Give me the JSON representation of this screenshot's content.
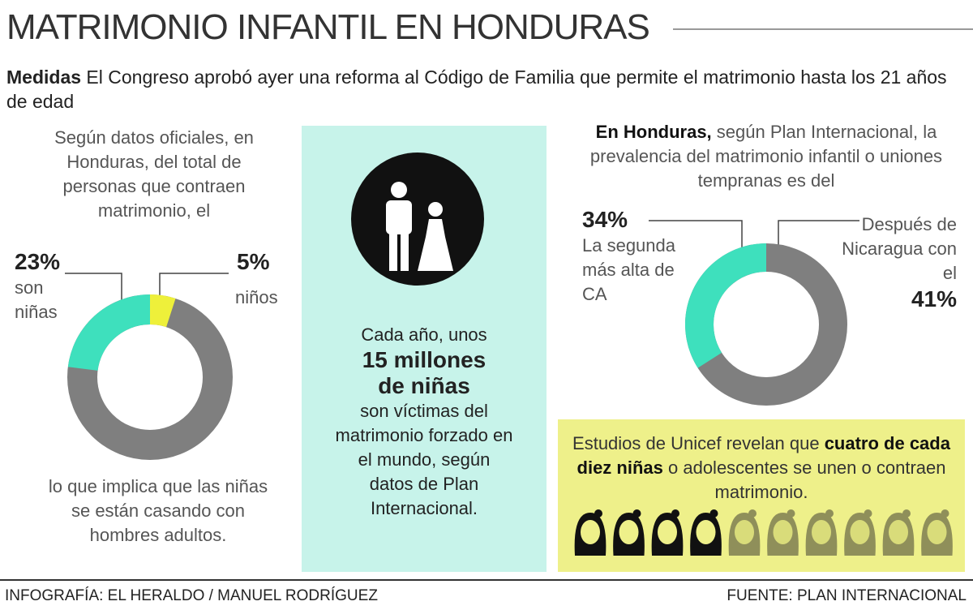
{
  "header": {
    "title": "MATRIMONIO INFANTIL EN HONDURAS",
    "lead_label": "Medidas",
    "lead": "El Congreso aprobó ayer una reforma al Código de Familia que permite el matrimonio hasta los 21 años de edad"
  },
  "left": {
    "intro": "Según datos oficiales, en Honduras, del total de personas que contraen matrimonio, el",
    "conclusion": "lo que implica que las niñas se están casando con hombres adultos."
  },
  "center": {
    "line1": "Cada año, unos",
    "highlight": "15 millones de niñas",
    "line2": "son víctimas del matrimonio forzado en el mundo, según datos de Plan Internacional."
  },
  "right": {
    "intro_label": "En Honduras,",
    "intro": "según Plan Internacional, la prevalencia del matrimonio infantil o uniones tempranas es del",
    "comparison": "Después de Nicaragua con el",
    "comparison_value": "41%"
  },
  "unicef": {
    "before": "Estudios de Unicef revelan que",
    "highlight": "cuatro de cada diez niñas",
    "after": "o adolescentes se unen o contraen matrimonio."
  },
  "footer": {
    "credit": "INFOGRAFÍA: EL HERALDO / MANUEL RODRÍGUEZ",
    "source": "FUENTE: PLAN INTERNACIONAL"
  },
  "chart_data": [
    {
      "type": "donut",
      "categories": [
        "son niñas",
        "niños"
      ],
      "values": [
        23,
        5
      ],
      "value_labels": [
        "23%",
        "5%"
      ],
      "colors": [
        "#3ee0bd",
        "#eef03a"
      ]
    },
    {
      "type": "donut",
      "categories": [
        "La segunda más alta de CA"
      ],
      "values": [
        34
      ],
      "value_labels": [
        "34%"
      ],
      "colors": [
        "#3ee0bd"
      ]
    }
  ]
}
